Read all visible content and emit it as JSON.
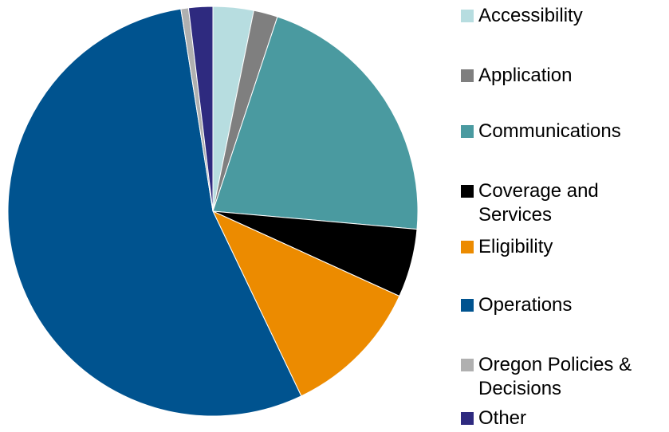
{
  "chart_data": {
    "type": "pie",
    "categories": [
      "Accessibility",
      "Application",
      "Communications",
      "Coverage and Services",
      "Eligibility",
      "Operations",
      "Oregon Policies & Decisions",
      "Other"
    ],
    "values": [
      3.2,
      1.9,
      21.3,
      5.4,
      11.1,
      54.6,
      0.6,
      1.9
    ],
    "colors": [
      "#b7dde0",
      "#7f7f7f",
      "#4a9aa0",
      "#000000",
      "#ec8b00",
      "#00538f",
      "#b0b0b0",
      "#2e2a7f"
    ],
    "legend": "right"
  }
}
